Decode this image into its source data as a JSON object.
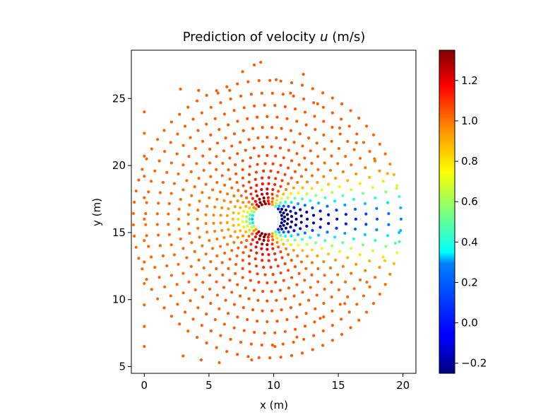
{
  "chart_data": {
    "type": "scatter",
    "title": "Prediction of velocity ",
    "title_var": "u",
    "title_unit": " (m/s)",
    "xlabel": "x (m)",
    "ylabel": "y (m)",
    "xlim": [
      -1.0,
      21.0
    ],
    "ylim": [
      4.5,
      28.6
    ],
    "xticks": [
      0,
      5,
      10,
      15,
      20
    ],
    "yticks": [
      5,
      10,
      15,
      20,
      25
    ],
    "grid": false,
    "colormap": "jet",
    "colorbar": {
      "vmin": -0.25,
      "vmax": 1.35,
      "ticks": [
        -0.2,
        0.0,
        0.2,
        0.4,
        0.6,
        0.8,
        1.0,
        1.2
      ],
      "tick_labels": [
        "−0.2",
        "0.0",
        "0.2",
        "0.4",
        "0.6",
        "0.8",
        "1.0",
        "1.2"
      ]
    },
    "description": "Velocity u sampled on a radial point cloud around a cylinder at (9.5, 16), radius 1; flow from left; low-velocity wake behind the cylinder; accelerated flow above and below.",
    "field": {
      "cylinder_center": [
        9.5,
        16.0
      ],
      "cylinder_radius": 1.0,
      "freestream_u": 1.0,
      "domain_radius": 10.5,
      "sample_x": [
        0.0,
        0.0,
        0.0,
        0.0,
        0.0,
        0.0,
        0.0,
        0.0,
        0.0,
        0.0,
        0.0,
        0.0,
        8.5,
        9.0,
        12.3,
        7.6,
        2.8,
        4.2,
        5.7,
        6.6,
        10.2,
        11.3,
        13.4,
        15.1,
        16.4,
        17.8,
        18.8,
        19.5,
        19.7,
        19.4,
        18.6,
        17.2,
        15.5,
        13.6,
        11.8,
        10.1,
        8.3,
        5.8,
        4.4,
        3.0
      ],
      "sample_y": [
        24.0,
        22.4,
        20.7,
        19.2,
        17.6,
        16.0,
        14.4,
        12.8,
        11.2,
        9.6,
        8.0,
        6.5,
        27.5,
        27.7,
        26.8,
        27.0,
        25.7,
        25.6,
        25.4,
        25.6,
        26.4,
        25.4,
        24.6,
        22.8,
        21.7,
        20.5,
        19.4,
        18.3,
        15.0,
        14.2,
        12.9,
        11.3,
        9.7,
        8.6,
        7.2,
        6.5,
        5.5,
        5.3,
        5.5,
        5.8
      ]
    }
  }
}
